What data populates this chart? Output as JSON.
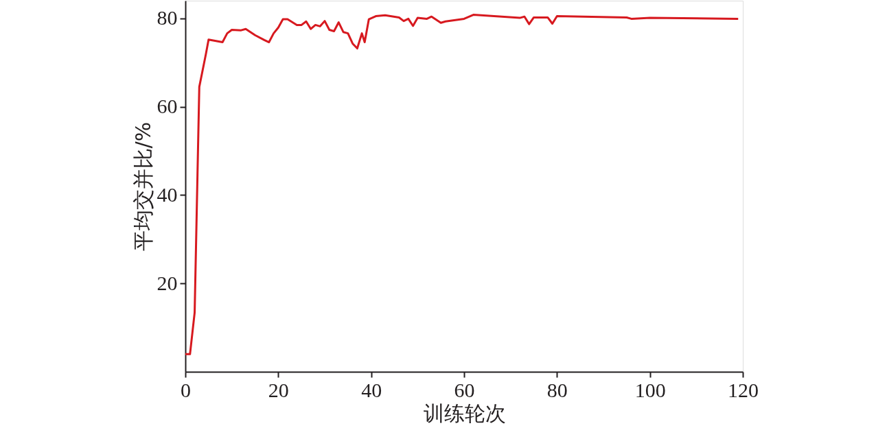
{
  "chart_data": {
    "type": "line",
    "xlabel": "训练轮次",
    "ylabel": "平均交并比/%",
    "xlim": [
      0,
      120
    ],
    "xticks": [
      0,
      20,
      40,
      60,
      80,
      100,
      120
    ],
    "ylim": [
      0,
      84
    ],
    "yticks": [
      20,
      40,
      60,
      80
    ],
    "grid": false,
    "marker": "none",
    "line_style": "solid",
    "series": [
      {
        "color": "#d7191f",
        "x": [
          0,
          1,
          2,
          3,
          4.4,
          5,
          6,
          8,
          9,
          10,
          12,
          13,
          15,
          17,
          18,
          19,
          20,
          21,
          22,
          24,
          25,
          26,
          27,
          28,
          29,
          30,
          31,
          32,
          33,
          34,
          35,
          36,
          37,
          38,
          38.6,
          39.5,
          41,
          43,
          46,
          47,
          48,
          49,
          50,
          52,
          53,
          55,
          56,
          60,
          62,
          72,
          73,
          74,
          75,
          78,
          79,
          80,
          95,
          96,
          100,
          119
        ],
        "values": [
          4,
          4,
          13.4,
          64.5,
          71.8,
          75.2,
          75,
          74.6,
          76.6,
          77.4,
          77.3,
          77.6,
          76.2,
          75.1,
          74.6,
          76.6,
          77.9,
          79.8,
          79.8,
          78.5,
          78.5,
          79.3,
          77.6,
          78.5,
          78.2,
          79.4,
          77.4,
          77.1,
          79.1,
          76.9,
          76.6,
          74.3,
          73.2,
          76.6,
          74.6,
          79.8,
          80.5,
          80.7,
          80.2,
          79.4,
          79.9,
          78.3,
          80.1,
          79.9,
          80.4,
          79,
          79.3,
          79.9,
          80.8,
          80.1,
          80.4,
          78.7,
          80.2,
          80.2,
          78.8,
          80.5,
          80.2,
          79.9,
          80.1,
          79.9
        ]
      }
    ]
  }
}
